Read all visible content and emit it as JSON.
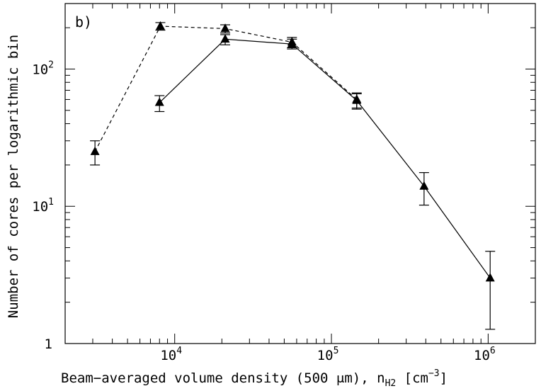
{
  "chart_data": {
    "type": "line",
    "panel_label": "b)",
    "xlabel": "Beam−averaged volume density (500 μm), n",
    "xlabel_sub": "H2",
    "xlabel_unit_open": " [cm",
    "xlabel_unit_sup": "−3",
    "xlabel_unit_close": "]",
    "ylabel": "Number of cores per logarithmic bin",
    "x_scale": "log",
    "y_scale": "log",
    "xlim": [
      2000,
      2000000
    ],
    "ylim": [
      1,
      300
    ],
    "x_ticks": [
      {
        "value": 10000,
        "base": "10",
        "exp": "4"
      },
      {
        "value": 100000,
        "base": "10",
        "exp": "5"
      },
      {
        "value": 1000000,
        "base": "10",
        "exp": "6"
      }
    ],
    "y_ticks": [
      {
        "value": 1,
        "base": "1",
        "exp": ""
      },
      {
        "value": 10,
        "base": "10",
        "exp": "1"
      },
      {
        "value": 100,
        "base": "10",
        "exp": "2"
      }
    ],
    "series": [
      {
        "name": "solid",
        "style": "solid",
        "points": [
          {
            "x": 8000,
            "y": 57,
            "err_low": 49,
            "err_high": 64
          },
          {
            "x": 21000,
            "y": 165,
            "err_low": 150,
            "err_high": 178
          },
          {
            "x": 56000,
            "y": 152,
            "err_low": 140,
            "err_high": 165
          },
          {
            "x": 145000,
            "y": 59,
            "err_low": 51,
            "err_high": 66
          },
          {
            "x": 390000,
            "y": 14,
            "err_low": 10.2,
            "err_high": 17.6
          },
          {
            "x": 1030000,
            "y": 3,
            "err_low": 1.27,
            "err_high": 4.7
          }
        ]
      },
      {
        "name": "dashed",
        "style": "dashed",
        "points": [
          {
            "x": 3100,
            "y": 25,
            "err_low": 20,
            "err_high": 30
          },
          {
            "x": 8100,
            "y": 205,
            "err_low": 192,
            "err_high": 218
          },
          {
            "x": 21000,
            "y": 197,
            "err_low": 183,
            "err_high": 210
          },
          {
            "x": 56000,
            "y": 157,
            "err_low": 143,
            "err_high": 170
          },
          {
            "x": 145000,
            "y": 60,
            "err_low": 52,
            "err_high": 67
          }
        ]
      }
    ]
  }
}
